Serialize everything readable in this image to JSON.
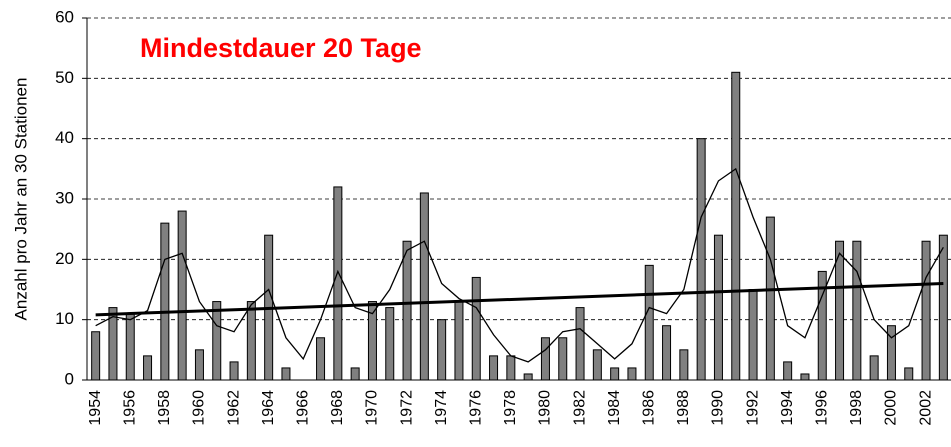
{
  "chart_data": {
    "type": "bar",
    "title": "Mindestdauer 20 Tage",
    "y_label": "Anzahl pro Jahr an 30 Stationen",
    "categories": [
      "1954",
      null,
      "1956",
      null,
      "1958",
      null,
      "1960",
      null,
      "1962",
      null,
      "1964",
      null,
      "1966",
      null,
      "1968",
      null,
      "1970",
      null,
      "1972",
      null,
      "1974",
      null,
      "1976",
      null,
      "1978",
      null,
      "1980",
      null,
      "1982",
      null,
      "1984",
      null,
      "1986",
      null,
      "1988",
      null,
      "1990",
      null,
      "1992",
      null,
      "1994",
      null,
      "1996",
      null,
      "1998",
      null,
      "2000",
      null,
      "2002",
      null
    ],
    "values": [
      8,
      12,
      11,
      4,
      26,
      28,
      5,
      13,
      3,
      13,
      24,
      2,
      0,
      7,
      32,
      2,
      13,
      12,
      23,
      31,
      10,
      13,
      17,
      4,
      4,
      1,
      7,
      7,
      12,
      5,
      2,
      2,
      19,
      9,
      5,
      40,
      24,
      51,
      15,
      27,
      3,
      1,
      18,
      23,
      23,
      4,
      9,
      2,
      23,
      24
    ],
    "color": "#808080",
    "smooth": [
      9,
      10.5,
      10,
      11.5,
      20,
      21,
      13,
      9,
      8,
      12.5,
      15,
      7,
      3.5,
      10,
      18,
      12,
      11,
      15,
      21.5,
      23,
      16,
      13.5,
      12,
      7.5,
      4,
      3,
      5,
      8,
      8.5,
      6,
      3.5,
      6,
      12,
      11,
      15,
      27,
      33,
      35,
      27,
      20,
      9,
      7,
      14,
      21,
      18,
      10,
      7,
      9,
      17,
      22
    ],
    "trend": {
      "start": 10.8,
      "end": 16
    },
    "ylim": [
      0,
      60
    ],
    "yticks": [
      0,
      10,
      20,
      30,
      40,
      50,
      60
    ],
    "grid": true
  }
}
